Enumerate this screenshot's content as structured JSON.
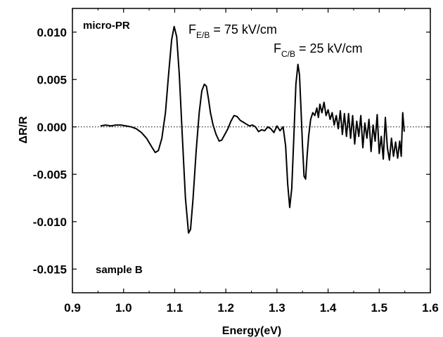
{
  "chart_data": {
    "type": "line",
    "xlabel": "Energy(eV)",
    "ylabel": "ΔR/R",
    "xlim": [
      0.9,
      1.6
    ],
    "ylim": [
      -0.0175,
      0.0125
    ],
    "x_ticks": [
      "0.9",
      "1.0",
      "1.1",
      "1.2",
      "1.3",
      "1.4",
      "1.5",
      "1.6"
    ],
    "y_ticks": [
      "0.010",
      "0.005",
      "0.000",
      "-0.005",
      "-0.010",
      "-0.015"
    ],
    "x_tick_values": [
      0.9,
      1.0,
      1.1,
      1.2,
      1.3,
      1.4,
      1.5,
      1.6
    ],
    "y_tick_values": [
      0.01,
      0.005,
      0.0,
      -0.005,
      -0.01,
      -0.015
    ],
    "zero_line": "dotted",
    "grid": false,
    "annotations": {
      "method": "micro-PR",
      "sample": "sample B",
      "field1_main": "F",
      "field1_sub": "E/B",
      "field1_value": " = 75 kV/cm",
      "field2_main": "F",
      "field2_sub": "C/B",
      "field2_value": " = 25 kV/cm"
    },
    "series": [
      {
        "x": [
          0.955,
          0.965,
          0.975,
          0.985,
          0.995,
          1.005,
          1.015,
          1.025,
          1.035,
          1.045,
          1.055,
          1.062,
          1.068,
          1.075,
          1.082,
          1.088,
          1.094,
          1.099,
          1.104,
          1.109,
          1.115,
          1.121,
          1.127,
          1.131,
          1.136,
          1.142,
          1.148,
          1.153,
          1.158,
          1.162,
          1.166,
          1.17,
          1.175,
          1.181,
          1.187,
          1.192,
          1.198,
          1.204,
          1.21,
          1.216,
          1.222,
          1.228,
          1.234,
          1.24,
          1.246,
          1.252,
          1.258,
          1.264,
          1.27,
          1.276,
          1.282,
          1.288,
          1.294,
          1.3,
          1.306,
          1.312,
          1.317,
          1.321,
          1.325,
          1.329,
          1.333,
          1.337,
          1.341,
          1.344,
          1.347,
          1.35,
          1.353,
          1.356,
          1.359,
          1.362,
          1.366,
          1.37,
          1.374,
          1.378,
          1.381,
          1.384,
          1.388,
          1.392,
          1.396,
          1.4,
          1.404,
          1.408,
          1.412,
          1.416,
          1.42,
          1.424,
          1.428,
          1.432,
          1.436,
          1.44,
          1.444,
          1.448,
          1.452,
          1.456,
          1.46,
          1.464,
          1.468,
          1.472,
          1.476,
          1.48,
          1.484,
          1.488,
          1.492,
          1.496,
          1.5,
          1.504,
          1.508,
          1.512,
          1.516,
          1.52,
          1.524,
          1.528,
          1.532,
          1.536,
          1.54,
          1.543,
          1.546,
          1.549
        ],
        "y": [
          0.0001,
          0.0002,
          0.0001,
          0.0002,
          0.0002,
          0.0001,
          0.0,
          -0.0002,
          -0.0006,
          -0.0012,
          -0.0021,
          -0.0027,
          -0.0025,
          -0.0012,
          0.0015,
          0.0055,
          0.0092,
          0.0106,
          0.0095,
          0.0055,
          -0.001,
          -0.0075,
          -0.0112,
          -0.0108,
          -0.0075,
          -0.0025,
          0.0015,
          0.0038,
          0.0045,
          0.0043,
          0.003,
          0.0015,
          0.0002,
          -0.0008,
          -0.0015,
          -0.0014,
          -0.0008,
          -0.0002,
          0.0006,
          0.0012,
          0.0011,
          0.0007,
          0.0005,
          0.0003,
          0.0001,
          0.0002,
          0.0,
          -0.0005,
          -0.0003,
          -0.0004,
          0.0,
          -0.0002,
          -0.0006,
          0.0001,
          -0.0004,
          0.0,
          -0.002,
          -0.006,
          -0.0085,
          -0.0065,
          -0.001,
          0.0045,
          0.0066,
          0.0055,
          0.002,
          -0.002,
          -0.0052,
          -0.0055,
          -0.003,
          -0.001,
          0.0008,
          0.0015,
          0.0012,
          0.002,
          0.001,
          0.0024,
          0.0015,
          0.0026,
          0.0012,
          0.0018,
          0.0008,
          0.0015,
          0.0002,
          0.0012,
          -0.0002,
          0.0017,
          -0.0008,
          0.0014,
          -0.001,
          0.0014,
          -0.0012,
          0.0012,
          -0.0018,
          0.0006,
          -0.001,
          0.0012,
          -0.0022,
          0.0004,
          -0.0012,
          0.0008,
          -0.0026,
          0.0002,
          -0.0015,
          0.0013,
          -0.0028,
          -0.001,
          -0.0034,
          0.001,
          -0.0022,
          -0.0035,
          -0.0012,
          -0.0031,
          -0.0016,
          -0.0033,
          -0.0015,
          -0.0031,
          0.0015,
          -0.0005
        ]
      }
    ]
  }
}
